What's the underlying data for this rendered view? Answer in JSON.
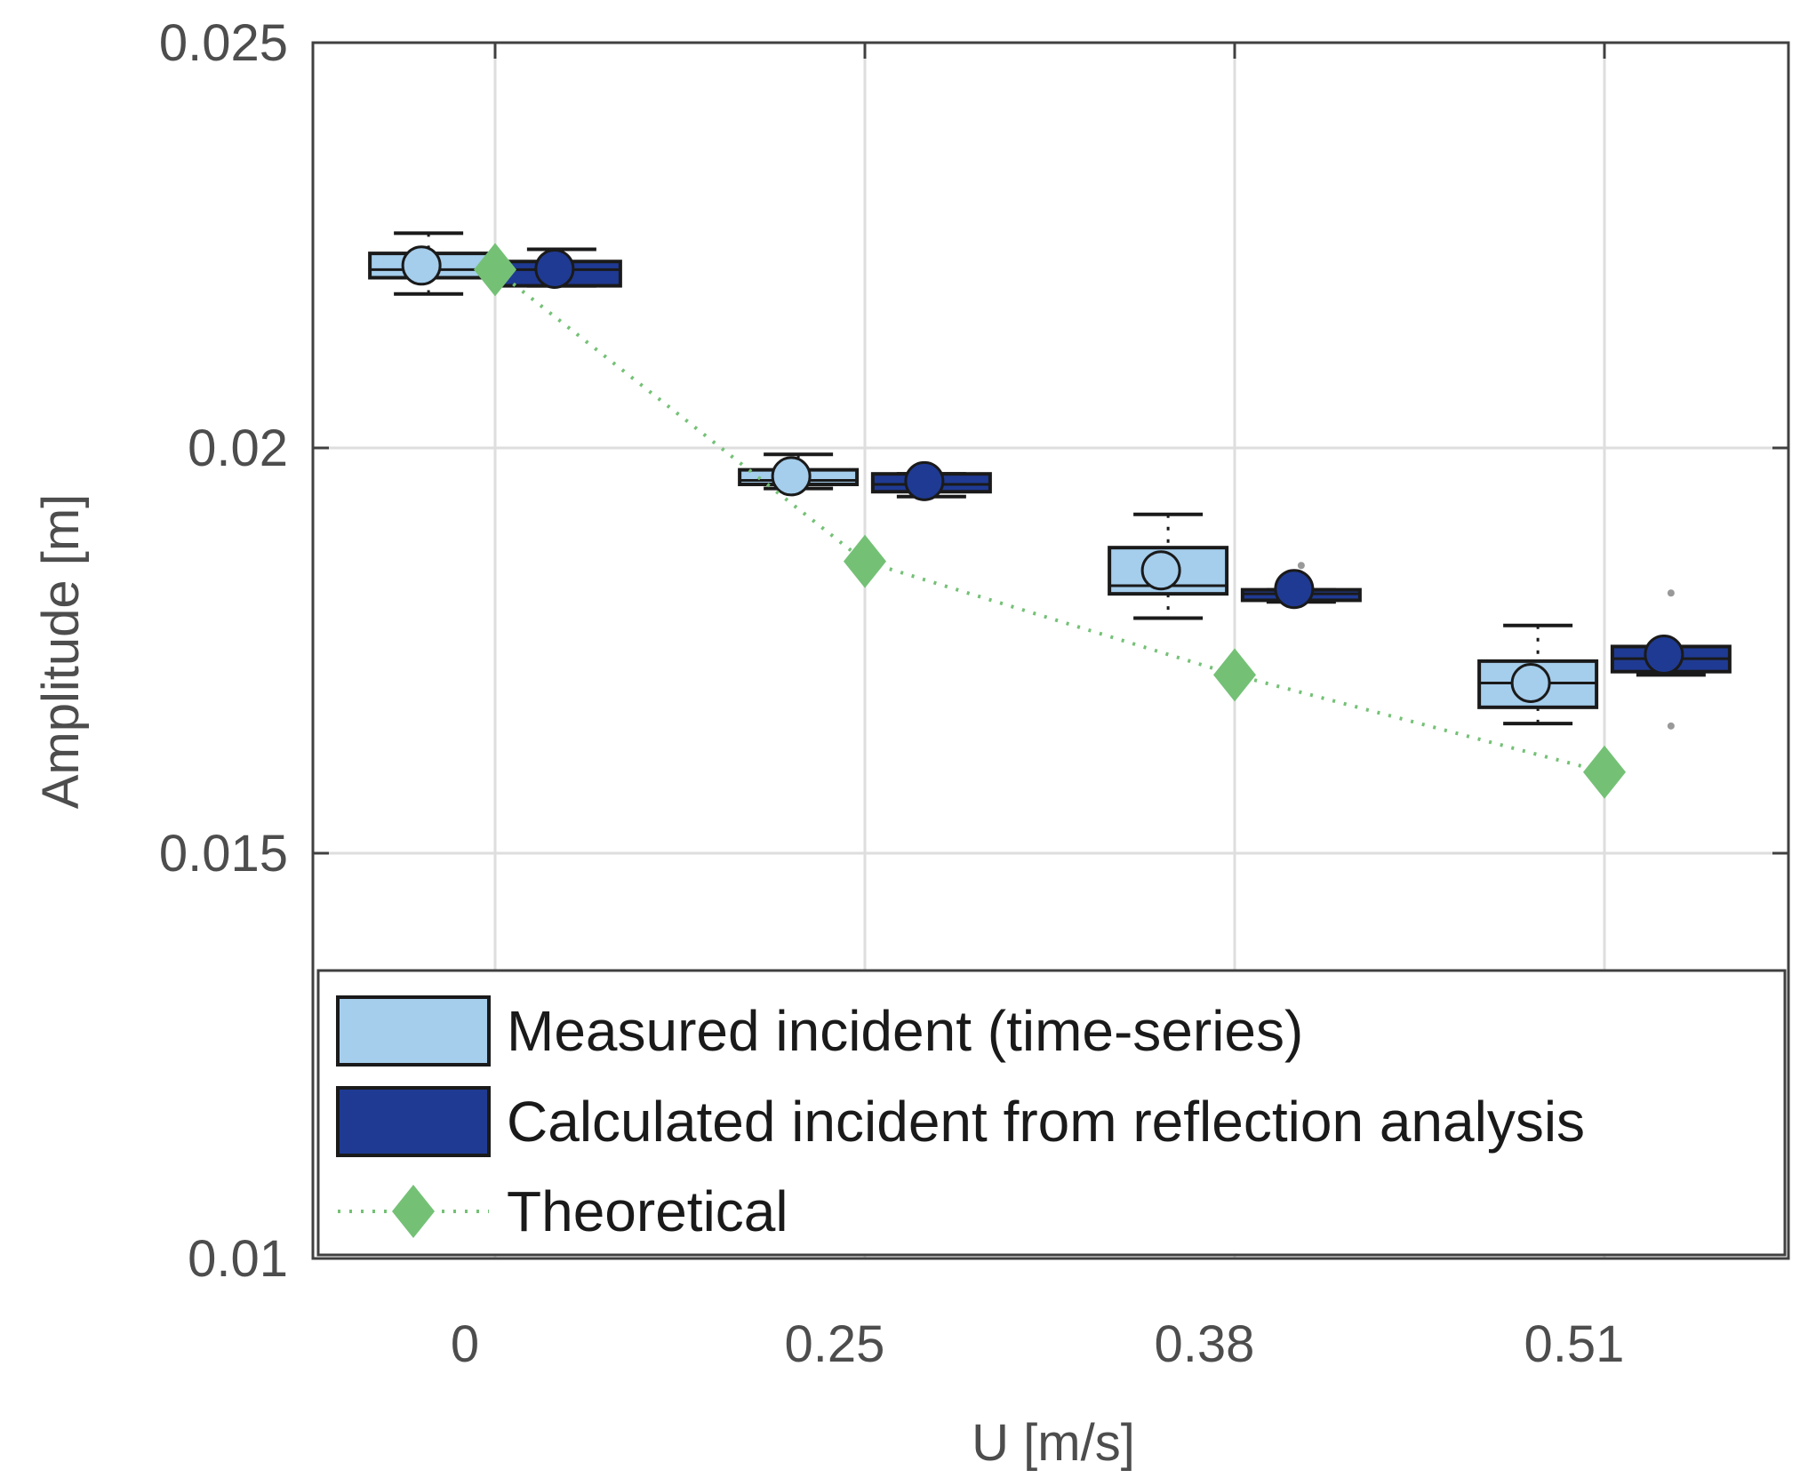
{
  "chart_data": {
    "type": "box",
    "xlabel": "U [m/s]",
    "ylabel": "Amplitude [m]",
    "ylim": [
      0.01,
      0.025
    ],
    "yticks": [
      0.01,
      0.015,
      0.02,
      0.025
    ],
    "ytick_labels": [
      "0.01",
      "0.015",
      "0.02",
      "0.025"
    ],
    "categories": [
      "0",
      "0.25",
      "0.38",
      "0.51"
    ],
    "grid": true,
    "legend_position": "lower",
    "series": [
      {
        "name": "Measured incident (time-series)",
        "kind": "box",
        "color": "#a5cdec",
        "offset": -0.18,
        "boxes": [
          {
            "category": "0",
            "whisker_low": 0.0219,
            "q1": 0.0221,
            "median": 0.0222,
            "q3": 0.0224,
            "whisker_high": 0.02265,
            "mean": 0.02225,
            "outliers": []
          },
          {
            "category": "0.25",
            "whisker_low": 0.0195,
            "q1": 0.01955,
            "median": 0.0196,
            "q3": 0.01973,
            "whisker_high": 0.01992,
            "mean": 0.01965,
            "outliers": []
          },
          {
            "category": "0.38",
            "whisker_low": 0.0179,
            "q1": 0.0182,
            "median": 0.0183,
            "q3": 0.01877,
            "whisker_high": 0.01918,
            "mean": 0.01849,
            "outliers": []
          },
          {
            "category": "0.51",
            "whisker_low": 0.0166,
            "q1": 0.0168,
            "median": 0.0171,
            "q3": 0.01737,
            "whisker_high": 0.01781,
            "mean": 0.0171,
            "outliers": []
          }
        ]
      },
      {
        "name": "Calculated incident from reflection analysis",
        "kind": "box",
        "color": "#1f3a93",
        "offset": 0.18,
        "boxes": [
          {
            "category": "0",
            "whisker_low": 0.022,
            "q1": 0.022,
            "median": 0.0222,
            "q3": 0.0223,
            "whisker_high": 0.02245,
            "mean": 0.02221,
            "outliers": []
          },
          {
            "category": "0.25",
            "whisker_low": 0.0194,
            "q1": 0.01946,
            "median": 0.01955,
            "q3": 0.01968,
            "whisker_high": 0.01968,
            "mean": 0.01959,
            "outliers": []
          },
          {
            "category": "0.38",
            "whisker_low": 0.0181,
            "q1": 0.01812,
            "median": 0.0182,
            "q3": 0.01825,
            "whisker_high": 0.01825,
            "mean": 0.01826,
            "outliers": [
              0.01855
            ]
          },
          {
            "category": "0.51",
            "whisker_low": 0.0172,
            "q1": 0.01724,
            "median": 0.0174,
            "q3": 0.01755,
            "whisker_high": 0.01755,
            "mean": 0.01745,
            "outliers": [
              0.01821,
              0.01657
            ]
          }
        ]
      },
      {
        "name": "Theoretical",
        "kind": "line",
        "color": "#74c176",
        "marker": "diamond",
        "linestyle": "dotted",
        "x": [
          "0",
          "0.25",
          "0.38",
          "0.51"
        ],
        "values": [
          0.0222,
          0.0186,
          0.0172,
          0.016
        ]
      }
    ],
    "legend": [
      {
        "label": "Measured incident (time-series)",
        "swatch": "box",
        "color": "#a5cdec"
      },
      {
        "label": "Calculated incident from reflection analysis",
        "swatch": "box",
        "color": "#1f3a93"
      },
      {
        "label": "Theoretical",
        "swatch": "line-diamond",
        "color": "#74c176"
      }
    ]
  }
}
